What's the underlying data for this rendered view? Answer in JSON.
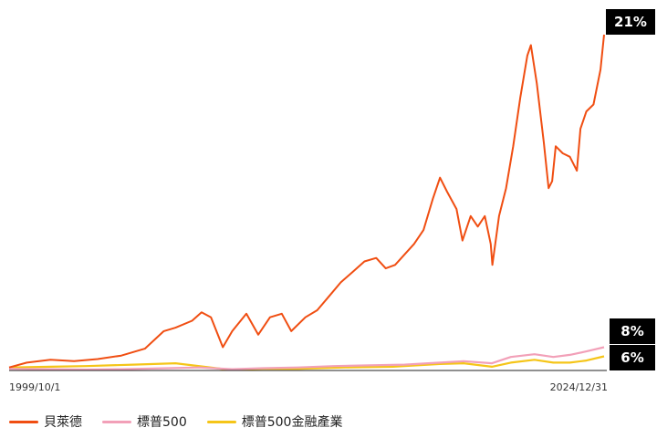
{
  "chart_data": {
    "type": "line",
    "title": "",
    "xlabel": "",
    "ylabel": "",
    "x_start_label": "1999/10/1",
    "x_end_label": "2024/12/31",
    "legend_placement": "bottom-left",
    "grid": false,
    "series": [
      {
        "name": "貝萊德",
        "color": "#f04e12",
        "end_label": "21%",
        "x": [
          1999.75,
          2000.5,
          2001.5,
          2002.5,
          2003.5,
          2004.5,
          2005.5,
          2006.3,
          2006.8,
          2007.5,
          2007.9,
          2008.3,
          2008.8,
          2009.2,
          2009.8,
          2010.3,
          2010.8,
          2011.3,
          2011.7,
          2012.3,
          2012.8,
          2013.3,
          2013.8,
          2014.3,
          2014.8,
          2015.3,
          2015.7,
          2016.1,
          2016.5,
          2016.9,
          2017.3,
          2017.7,
          2018.0,
          2018.3,
          2018.7,
          2018.95,
          2019.3,
          2019.6,
          2019.9,
          2020.15,
          2020.22,
          2020.5,
          2020.8,
          2021.1,
          2021.4,
          2021.7,
          2021.85,
          2022.1,
          2022.4,
          2022.6,
          2022.75,
          2022.9,
          2023.2,
          2023.5,
          2023.8,
          2023.95,
          2024.2,
          2024.5,
          2024.8,
          2024.95
        ],
        "values": [
          0.3,
          1.0,
          1.4,
          1.2,
          1.5,
          2.0,
          3.0,
          5.5,
          6.0,
          7.0,
          8.2,
          7.5,
          3.2,
          5.5,
          8.0,
          5.0,
          7.5,
          8.0,
          5.5,
          7.5,
          8.5,
          10.5,
          12.5,
          14.0,
          15.5,
          16.0,
          14.5,
          15.0,
          16.5,
          18.0,
          20.0,
          24.5,
          27.5,
          25.5,
          23.0,
          18.5,
          22.0,
          20.5,
          22.0,
          18.0,
          15.0,
          22.0,
          26.0,
          32.0,
          39.0,
          45.0,
          46.5,
          41.0,
          32.5,
          26.0,
          27.0,
          32.0,
          31.0,
          30.5,
          28.5,
          34.5,
          37.0,
          38.0,
          43.0,
          48.0
        ]
      },
      {
        "name": "標普500",
        "color": "#f2a0b8",
        "end_label": "8%",
        "x": [
          1999.75,
          2001.5,
          2003.0,
          2004.5,
          2006.5,
          2007.8,
          2009.2,
          2010.5,
          2012.0,
          2013.5,
          2015.0,
          2016.5,
          2018.0,
          2019.0,
          2020.2,
          2021.0,
          2022.0,
          2022.8,
          2023.5,
          2024.2,
          2024.95
        ],
        "values": [
          0.1,
          0.05,
          0.0,
          0.05,
          0.2,
          0.3,
          0.05,
          0.2,
          0.3,
          0.5,
          0.6,
          0.7,
          1.0,
          1.2,
          0.9,
          1.8,
          2.2,
          1.8,
          2.1,
          2.6,
          3.2
        ]
      },
      {
        "name": "標普500金融產業",
        "color": "#f5c518",
        "end_label": "6%",
        "x": [
          1999.75,
          2001.5,
          2003.0,
          2005.0,
          2006.8,
          2008.0,
          2009.0,
          2010.5,
          2012.0,
          2014.0,
          2016.0,
          2018.0,
          2019.0,
          2020.2,
          2021.0,
          2022.0,
          2022.8,
          2023.5,
          2024.2,
          2024.95
        ],
        "values": [
          0.3,
          0.4,
          0.5,
          0.7,
          0.9,
          0.4,
          0.0,
          0.1,
          0.1,
          0.3,
          0.4,
          0.8,
          0.9,
          0.4,
          1.0,
          1.4,
          1.0,
          1.0,
          1.3,
          1.9
        ]
      }
    ]
  }
}
